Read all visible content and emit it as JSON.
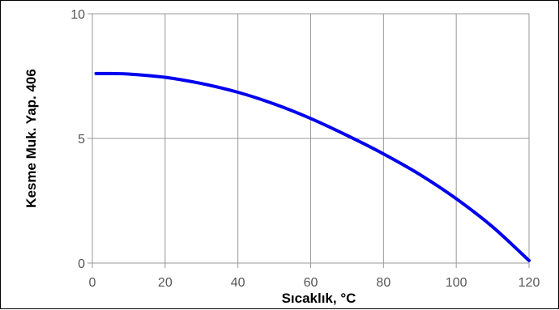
{
  "chart_data": {
    "type": "line",
    "title": "",
    "xlabel": "Sıcaklık, °C",
    "ylabel": "Kesme Muk. Yap. 406",
    "xlim": [
      0,
      120
    ],
    "ylim": [
      0,
      10
    ],
    "x_ticks": [
      "0",
      "20",
      "40",
      "60",
      "80",
      "100",
      "120"
    ],
    "y_ticks": [
      "0",
      "5",
      "10"
    ],
    "grid": true,
    "colors": {
      "line": "#0000ee",
      "grid": "#999999",
      "axis": "#999999"
    },
    "series": [
      {
        "x": [
          1,
          5,
          10,
          20,
          30,
          40,
          50,
          60,
          70,
          80,
          90,
          100,
          110,
          120
        ],
        "values": [
          7.6,
          7.6,
          7.58,
          7.45,
          7.2,
          6.85,
          6.38,
          5.8,
          5.12,
          4.38,
          3.55,
          2.58,
          1.45,
          0.1
        ]
      }
    ]
  }
}
